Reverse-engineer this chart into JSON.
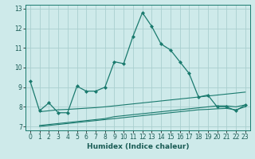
{
  "background_color": "#ceeaea",
  "grid_color": "#aacfcf",
  "line_color": "#1a7a6e",
  "xlabel": "Humidex (Indice chaleur)",
  "ylim": [
    6.8,
    13.2
  ],
  "xlim": [
    -0.5,
    23.5
  ],
  "yticks": [
    7,
    8,
    9,
    10,
    11,
    12,
    13
  ],
  "xticks": [
    0,
    1,
    2,
    3,
    4,
    5,
    6,
    7,
    8,
    9,
    10,
    11,
    12,
    13,
    14,
    15,
    16,
    17,
    18,
    19,
    20,
    21,
    22,
    23
  ],
  "line1_x": [
    0,
    1,
    2,
    3,
    4,
    5,
    6,
    7,
    8,
    9,
    10,
    11,
    12,
    13,
    14,
    15,
    16,
    17,
    18,
    19,
    20,
    21,
    22,
    23
  ],
  "line1_y": [
    9.3,
    7.8,
    8.2,
    7.7,
    7.7,
    9.05,
    8.8,
    8.8,
    9.0,
    10.3,
    10.2,
    11.6,
    12.8,
    12.1,
    11.2,
    10.9,
    10.3,
    9.7,
    8.5,
    8.6,
    8.0,
    8.0,
    7.8,
    8.1
  ],
  "line2_x": [
    1,
    2,
    3,
    4,
    5,
    6,
    7,
    8,
    9,
    10,
    11,
    12,
    13,
    14,
    15,
    16,
    17,
    18,
    19,
    20,
    21,
    22,
    23
  ],
  "line2_y": [
    7.75,
    7.8,
    7.85,
    7.87,
    7.9,
    7.93,
    7.96,
    8.0,
    8.05,
    8.1,
    8.15,
    8.2,
    8.25,
    8.3,
    8.35,
    8.4,
    8.45,
    8.5,
    8.55,
    8.6,
    8.65,
    8.7,
    8.75
  ],
  "line3_x": [
    1,
    2,
    3,
    4,
    5,
    6,
    7,
    8,
    9,
    10,
    11,
    12,
    13,
    14,
    15,
    16,
    17,
    18,
    19,
    20,
    21,
    22,
    23
  ],
  "line3_y": [
    7.05,
    7.1,
    7.15,
    7.2,
    7.25,
    7.3,
    7.35,
    7.4,
    7.5,
    7.55,
    7.6,
    7.65,
    7.7,
    7.75,
    7.8,
    7.85,
    7.9,
    7.95,
    8.0,
    8.05,
    8.05,
    8.0,
    8.1
  ],
  "line4_x": [
    1,
    2,
    3,
    4,
    5,
    6,
    7,
    8,
    9,
    10,
    11,
    12,
    13,
    14,
    15,
    16,
    17,
    18,
    19,
    20,
    21,
    22,
    23
  ],
  "line4_y": [
    7.0,
    7.05,
    7.1,
    7.15,
    7.2,
    7.25,
    7.3,
    7.35,
    7.4,
    7.45,
    7.5,
    7.55,
    7.6,
    7.65,
    7.7,
    7.75,
    7.8,
    7.85,
    7.87,
    7.9,
    7.92,
    7.85,
    8.0
  ]
}
